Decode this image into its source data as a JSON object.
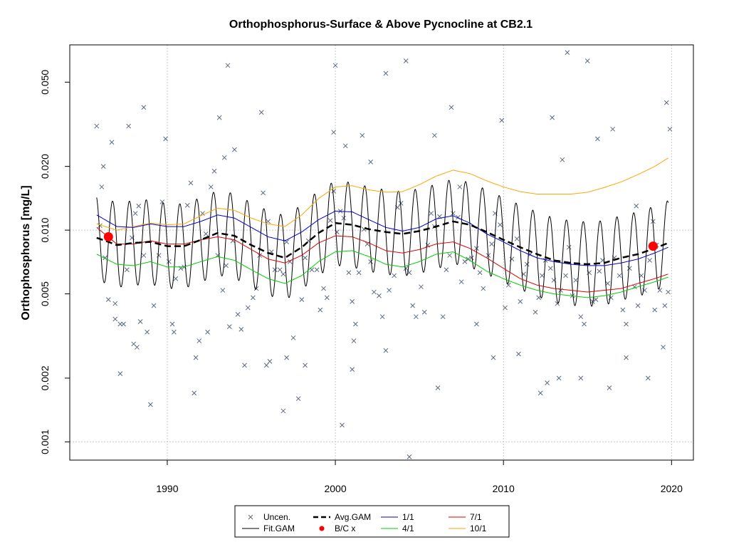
{
  "chart_data": {
    "type": "scatter",
    "title": "Orthophosphorus-Surface & Above Pycnocline at CB2.1",
    "xlabel": "",
    "ylabel": "Orthophosphorus [mg/L]",
    "y_scale": "log",
    "xlim": [
      1984.2,
      2021.3
    ],
    "ylim": [
      0.00082,
      0.075
    ],
    "x_ticks": [
      "1990",
      "2000",
      "2010",
      "2020"
    ],
    "x_tick_values": [
      1990,
      2000,
      2010,
      2020
    ],
    "y_ticks": [
      "0.001",
      "0.002",
      "0.005",
      "0.010",
      "0.020",
      "0.050"
    ],
    "y_tick_values": [
      0.001,
      0.002,
      0.005,
      0.01,
      0.02,
      0.05
    ],
    "grid": true,
    "legend_position": "bottom",
    "colors": {
      "uncen": "#5a6a80",
      "fit_gam": "#000000",
      "avg_gam": "#000000",
      "bc_x": "#ff0000",
      "m1": "#0000cc",
      "m4": "#00cc00",
      "m7": "#dd0000",
      "m10": "#ffa500",
      "grid": "#c8c8c8"
    },
    "legend": [
      {
        "label": "Uncen.",
        "kind": "x",
        "color": "#5a6a80"
      },
      {
        "label": "Fit.GAM",
        "kind": "line",
        "color": "#000000"
      },
      {
        "label": "Avg.GAM",
        "kind": "dash",
        "color": "#000000"
      },
      {
        "label": "B/C x",
        "kind": "dot",
        "color": "#ff0000"
      },
      {
        "label": "1/1",
        "kind": "line",
        "color": "#0000cc"
      },
      {
        "label": "4/1",
        "kind": "line",
        "color": "#00cc00"
      },
      {
        "label": "7/1",
        "kind": "line",
        "color": "#dd0000"
      },
      {
        "label": "10/1",
        "kind": "line",
        "color": "#ffa500"
      }
    ],
    "series": [
      {
        "name": "Avg.GAM",
        "x": [
          1985.8,
          1986.5,
          1987,
          1988,
          1989,
          1990,
          1991,
          1992,
          1993,
          1994,
          1995,
          1996,
          1997,
          1998,
          1999,
          2000,
          2001,
          2002,
          2003,
          2004,
          2005,
          2006,
          2007,
          2008,
          2009,
          2010,
          2011,
          2012,
          2013,
          2014,
          2015,
          2016,
          2017,
          2018,
          2019,
          2019.8
        ],
        "y": [
          0.0092,
          0.0088,
          0.0085,
          0.0087,
          0.0088,
          0.0084,
          0.0084,
          0.009,
          0.0097,
          0.0094,
          0.0085,
          0.0078,
          0.0074,
          0.0083,
          0.0097,
          0.0108,
          0.0106,
          0.0101,
          0.0098,
          0.0096,
          0.0099,
          0.0104,
          0.011,
          0.0106,
          0.0098,
          0.009,
          0.0083,
          0.0077,
          0.0072,
          0.007,
          0.0069,
          0.007,
          0.0074,
          0.0077,
          0.0082,
          0.0087
        ]
      },
      {
        "name": "1/1",
        "x": [
          1985.8,
          1987,
          1988,
          1989,
          1990,
          1991,
          1992,
          1993,
          1994,
          1995,
          1996,
          1997,
          1998,
          1999,
          2000,
          2001,
          2002,
          2003,
          2004,
          2005,
          2006,
          2007,
          2008,
          2009,
          2010,
          2011,
          2012,
          2013,
          2014,
          2015,
          2016,
          2017,
          2018,
          2019,
          2019.8
        ],
        "y": [
          0.0118,
          0.0104,
          0.0103,
          0.0107,
          0.0104,
          0.0104,
          0.011,
          0.0118,
          0.0114,
          0.0103,
          0.0093,
          0.0089,
          0.0098,
          0.0112,
          0.0123,
          0.0122,
          0.0112,
          0.0103,
          0.0099,
          0.0103,
          0.0113,
          0.0117,
          0.0108,
          0.0096,
          0.0088,
          0.008,
          0.0074,
          0.0071,
          0.0069,
          0.0068,
          0.0068,
          0.007,
          0.0073,
          0.0078,
          0.0083
        ]
      },
      {
        "name": "4/1",
        "x": [
          1985.8,
          1987,
          1988,
          1989,
          1990,
          1991,
          1992,
          1993,
          1994,
          1995,
          1996,
          1997,
          1998,
          1999,
          2000,
          2001,
          2002,
          2003,
          2004,
          2005,
          2006,
          2007,
          2008,
          2009,
          2010,
          2011,
          2012,
          2013,
          2014,
          2015,
          2016,
          2017,
          2018,
          2019,
          2019.8
        ],
        "y": [
          0.0077,
          0.0069,
          0.0068,
          0.0071,
          0.0067,
          0.0067,
          0.0071,
          0.0075,
          0.0072,
          0.0065,
          0.0059,
          0.0056,
          0.0061,
          0.0071,
          0.0079,
          0.008,
          0.0075,
          0.0069,
          0.0067,
          0.0071,
          0.0077,
          0.0079,
          0.0072,
          0.0064,
          0.0059,
          0.0055,
          0.0052,
          0.005,
          0.0049,
          0.0048,
          0.0049,
          0.0051,
          0.0054,
          0.0057,
          0.006
        ]
      },
      {
        "name": "7/1",
        "x": [
          1985.8,
          1987,
          1988,
          1989,
          1990,
          1991,
          1992,
          1993,
          1994,
          1995,
          1996,
          1997,
          1998,
          1999,
          2000,
          2001,
          2002,
          2003,
          2004,
          2005,
          2006,
          2007,
          2008,
          2009,
          2010,
          2011,
          2012,
          2013,
          2014,
          2015,
          2016,
          2017,
          2018,
          2019,
          2019.8
        ],
        "y": [
          0.0103,
          0.0086,
          0.0086,
          0.0089,
          0.0086,
          0.0086,
          0.009,
          0.0093,
          0.009,
          0.0081,
          0.0073,
          0.007,
          0.0076,
          0.0087,
          0.0094,
          0.0093,
          0.0087,
          0.008,
          0.0078,
          0.0081,
          0.0086,
          0.0088,
          0.0082,
          0.0074,
          0.0066,
          0.0059,
          0.0055,
          0.0053,
          0.0052,
          0.0051,
          0.0052,
          0.0053,
          0.0056,
          0.0059,
          0.0062
        ]
      },
      {
        "name": "10/1",
        "x": [
          1985.8,
          1987,
          1988,
          1989,
          1990,
          1991,
          1992,
          1993,
          1994,
          1995,
          1996,
          1997,
          1998,
          1999,
          2000,
          2001,
          2002,
          2003,
          2004,
          2005,
          2006,
          2007,
          2008,
          2009,
          2010,
          2011,
          2012,
          2013,
          2014,
          2015,
          2016,
          2017,
          2018,
          2019,
          2019.8
        ],
        "y": [
          0.0107,
          0.01,
          0.0104,
          0.0108,
          0.0106,
          0.0107,
          0.0117,
          0.0127,
          0.0124,
          0.0114,
          0.0107,
          0.0104,
          0.0118,
          0.0141,
          0.016,
          0.0162,
          0.0155,
          0.0151,
          0.0152,
          0.0164,
          0.018,
          0.0192,
          0.0185,
          0.0171,
          0.016,
          0.0152,
          0.0148,
          0.0148,
          0.0148,
          0.0151,
          0.0159,
          0.0169,
          0.0183,
          0.02,
          0.0219
        ]
      },
      {
        "name": "B/C x",
        "x": [
          1986.5,
          2018.9
        ],
        "y": [
          0.0093,
          0.0084
        ]
      },
      {
        "name": "Fit.GAM",
        "amplitude": 0.2
      }
    ],
    "uncen_points": [
      [
        1985.8,
        0.031
      ],
      [
        1986.1,
        0.016
      ],
      [
        1986.3,
        0.0074
      ],
      [
        1986.5,
        0.0047
      ],
      [
        1986.7,
        0.026
      ],
      [
        1986.9,
        0.0045
      ],
      [
        1987.2,
        0.0021
      ],
      [
        1987.4,
        0.0036
      ],
      [
        1987.6,
        0.0065
      ],
      [
        1987.9,
        0.0092
      ],
      [
        1988.1,
        0.012
      ],
      [
        1988.3,
        0.013
      ],
      [
        1988.6,
        0.0076
      ],
      [
        1988.8,
        0.0033
      ],
      [
        1989.0,
        0.0015
      ],
      [
        1989.2,
        0.0044
      ],
      [
        1989.5,
        0.0076
      ],
      [
        1989.7,
        0.0136
      ],
      [
        1989.9,
        0.027
      ],
      [
        1986.0,
        0.0105
      ],
      [
        1986.2,
        0.02
      ],
      [
        1986.9,
        0.0038
      ],
      [
        1987.2,
        0.0036
      ],
      [
        1988.0,
        0.0029
      ],
      [
        1988.2,
        0.0028
      ],
      [
        1988.4,
        0.0037
      ],
      [
        1988.6,
        0.038
      ],
      [
        1987.7,
        0.031
      ],
      [
        1990.1,
        0.0071
      ],
      [
        1990.3,
        0.0036
      ],
      [
        1990.5,
        0.0059
      ],
      [
        1990.8,
        0.0066
      ],
      [
        1991.0,
        0.0067
      ],
      [
        1991.2,
        0.0131
      ],
      [
        1991.4,
        0.0167
      ],
      [
        1991.7,
        0.0025
      ],
      [
        1991.9,
        0.003
      ],
      [
        1992.1,
        0.012
      ],
      [
        1992.3,
        0.0096
      ],
      [
        1992.6,
        0.016
      ],
      [
        1992.8,
        0.019
      ],
      [
        1993.0,
        0.0076
      ],
      [
        1993.3,
        0.0052
      ],
      [
        1993.5,
        0.0068
      ],
      [
        1993.7,
        0.0035
      ],
      [
        1993.9,
        0.0089
      ],
      [
        1994.2,
        0.004
      ],
      [
        1994.4,
        0.0034
      ],
      [
        1994.6,
        0.0023
      ],
      [
        1994.8,
        0.0043
      ],
      [
        1990.4,
        0.0033
      ],
      [
        1991.6,
        0.0017
      ],
      [
        1992.4,
        0.0033
      ],
      [
        1993.1,
        0.034
      ],
      [
        1993.6,
        0.06
      ],
      [
        1994.0,
        0.024
      ],
      [
        1993.4,
        0.022
      ],
      [
        1995.1,
        0.0048
      ],
      [
        1995.3,
        0.0053
      ],
      [
        1995.5,
        0.0076
      ],
      [
        1995.7,
        0.015
      ],
      [
        1996.0,
        0.011
      ],
      [
        1996.2,
        0.0079
      ],
      [
        1996.4,
        0.0065
      ],
      [
        1996.7,
        0.0065
      ],
      [
        1996.9,
        0.0062
      ],
      [
        1997.1,
        0.0088
      ],
      [
        1997.3,
        0.0071
      ],
      [
        1997.5,
        0.0031
      ],
      [
        1997.8,
        0.0016
      ],
      [
        1998.0,
        0.0047
      ],
      [
        1998.2,
        0.0074
      ],
      [
        1998.4,
        0.0089
      ],
      [
        1998.6,
        0.0065
      ],
      [
        1998.9,
        0.0065
      ],
      [
        1999.1,
        0.0042
      ],
      [
        1999.3,
        0.0053
      ],
      [
        1999.5,
        0.0048
      ],
      [
        1999.7,
        0.0111
      ],
      [
        1999.9,
        0.0153
      ],
      [
        1995.6,
        0.036
      ],
      [
        1996.9,
        0.0014
      ],
      [
        1997.1,
        0.0025
      ],
      [
        1998.2,
        0.0023
      ],
      [
        1999.9,
        0.029
      ],
      [
        1996.1,
        0.0024
      ],
      [
        1995.9,
        0.0023
      ],
      [
        2000.1,
        0.0098
      ],
      [
        2000.3,
        0.0123
      ],
      [
        2000.5,
        0.0114
      ],
      [
        2000.8,
        0.0063
      ],
      [
        2001.0,
        0.0046
      ],
      [
        2001.2,
        0.0036
      ],
      [
        2001.4,
        0.0063
      ],
      [
        2001.7,
        0.0101
      ],
      [
        2001.9,
        0.0086
      ],
      [
        2002.1,
        0.0071
      ],
      [
        2002.3,
        0.0051
      ],
      [
        2002.6,
        0.0049
      ],
      [
        2002.8,
        0.0039
      ],
      [
        2003.0,
        0.0027
      ],
      [
        2003.2,
        0.0052
      ],
      [
        2003.5,
        0.0061
      ],
      [
        2003.7,
        0.0128
      ],
      [
        2003.9,
        0.0134
      ],
      [
        2004.2,
        0.0066
      ],
      [
        2004.4,
        0.0063
      ],
      [
        2004.6,
        0.0044
      ],
      [
        2004.8,
        0.0039
      ],
      [
        2000.0,
        0.06
      ],
      [
        2000.4,
        0.0012
      ],
      [
        2001.0,
        0.0022
      ],
      [
        2001.1,
        0.003
      ],
      [
        2002.1,
        0.021
      ],
      [
        2003.0,
        0.055
      ],
      [
        2004.2,
        0.063
      ],
      [
        2004.4,
        0.00085
      ],
      [
        2000.6,
        0.025
      ],
      [
        2001.6,
        0.028
      ],
      [
        2005.1,
        0.0054
      ],
      [
        2005.3,
        0.0041
      ],
      [
        2005.5,
        0.0085
      ],
      [
        2005.7,
        0.012
      ],
      [
        2005.9,
        0.0104
      ],
      [
        2006.2,
        0.0116
      ],
      [
        2006.4,
        0.0039
      ],
      [
        2006.6,
        0.0065
      ],
      [
        2006.8,
        0.0076
      ],
      [
        2007.0,
        0.012
      ],
      [
        2007.3,
        0.0115
      ],
      [
        2007.5,
        0.0057
      ],
      [
        2007.7,
        0.0071
      ],
      [
        2007.9,
        0.0073
      ],
      [
        2008.1,
        0.0074
      ],
      [
        2008.4,
        0.0082
      ],
      [
        2008.6,
        0.0063
      ],
      [
        2008.8,
        0.0053
      ],
      [
        2009.1,
        0.0076
      ],
      [
        2009.3,
        0.0086
      ],
      [
        2009.5,
        0.012
      ],
      [
        2009.8,
        0.0106
      ],
      [
        2006.1,
        0.0018
      ],
      [
        2006.9,
        0.038
      ],
      [
        2007.4,
        0.016
      ],
      [
        2008.4,
        0.0036
      ],
      [
        2009.4,
        0.0025
      ],
      [
        2009.9,
        0.033
      ],
      [
        2005.9,
        0.028
      ],
      [
        2010.1,
        0.0043
      ],
      [
        2010.3,
        0.0055
      ],
      [
        2010.5,
        0.0073
      ],
      [
        2010.8,
        0.0091
      ],
      [
        2011.0,
        0.0046
      ],
      [
        2011.2,
        0.0062
      ],
      [
        2011.4,
        0.0069
      ],
      [
        2011.6,
        0.0077
      ],
      [
        2011.9,
        0.0041
      ],
      [
        2012.1,
        0.0048
      ],
      [
        2012.3,
        0.0061
      ],
      [
        2012.5,
        0.0072
      ],
      [
        2012.8,
        0.0066
      ],
      [
        2013.0,
        0.0058
      ],
      [
        2013.2,
        0.0045
      ],
      [
        2013.4,
        0.0052
      ],
      [
        2013.7,
        0.0061
      ],
      [
        2013.9,
        0.0083
      ],
      [
        2014.1,
        0.0049
      ],
      [
        2014.3,
        0.0058
      ],
      [
        2014.6,
        0.0039
      ],
      [
        2014.8,
        0.0036
      ],
      [
        2010.9,
        0.0026
      ],
      [
        2012.2,
        0.0017
      ],
      [
        2012.6,
        0.0019
      ],
      [
        2012.9,
        0.034
      ],
      [
        2013.3,
        0.002
      ],
      [
        2013.8,
        0.069
      ],
      [
        2014.6,
        0.002
      ],
      [
        2013.5,
        0.0215
      ],
      [
        2015.1,
        0.0063
      ],
      [
        2015.3,
        0.0046
      ],
      [
        2015.5,
        0.0047
      ],
      [
        2015.7,
        0.0064
      ],
      [
        2015.9,
        0.0072
      ],
      [
        2016.2,
        0.0056
      ],
      [
        2016.4,
        0.0048
      ],
      [
        2016.6,
        0.0074
      ],
      [
        2016.9,
        0.0061
      ],
      [
        2017.1,
        0.0042
      ],
      [
        2017.3,
        0.0036
      ],
      [
        2017.5,
        0.0066
      ],
      [
        2017.8,
        0.0054
      ],
      [
        2018.0,
        0.0044
      ],
      [
        2018.2,
        0.0061
      ],
      [
        2018.4,
        0.0052
      ],
      [
        2018.7,
        0.0072
      ],
      [
        2018.9,
        0.011
      ],
      [
        2019.1,
        0.0085
      ],
      [
        2019.3,
        0.0052
      ],
      [
        2019.6,
        0.0044
      ],
      [
        2019.8,
        0.0051
      ],
      [
        2015.0,
        0.063
      ],
      [
        2015.6,
        0.027
      ],
      [
        2016.3,
        0.0018
      ],
      [
        2016.5,
        0.03
      ],
      [
        2017.3,
        0.0025
      ],
      [
        2018.6,
        0.002
      ],
      [
        2019.0,
        0.0042
      ],
      [
        2019.5,
        0.0028
      ],
      [
        2019.7,
        0.04
      ],
      [
        2019.9,
        0.03
      ],
      [
        2017.9,
        0.013
      ]
    ]
  }
}
